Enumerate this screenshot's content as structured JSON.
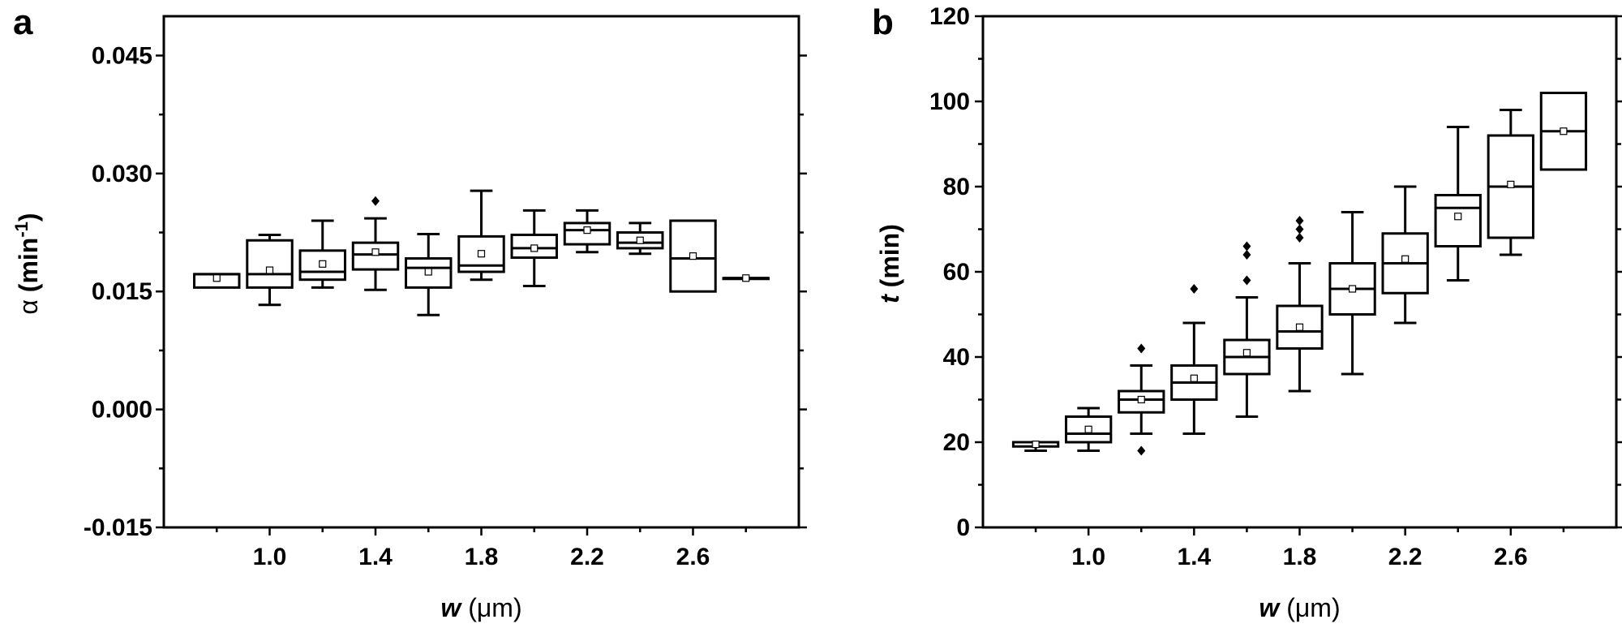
{
  "chart_data": [
    {
      "type": "box",
      "panel_label": "a",
      "xlabel": {
        "var": "w",
        "unit": " (μm)"
      },
      "ylabel": {
        "var": "α",
        "unit": " (min",
        "sup": "-1",
        "close": ")"
      },
      "xlim": [
        0.6,
        3.0
      ],
      "ylim": [
        -0.015,
        0.05
      ],
      "xticks": [
        1.0,
        1.4,
        1.8,
        2.2,
        2.6
      ],
      "xtick_labels": [
        "1.0",
        "1.4",
        "1.8",
        "2.2",
        "2.6"
      ],
      "yticks": [
        -0.015,
        0.0,
        0.015,
        0.03,
        0.045
      ],
      "ytick_labels": [
        "-0.015",
        "0.000",
        "0.015",
        "0.030",
        "0.045"
      ],
      "boxes": [
        {
          "x": 0.8,
          "q1": 0.0155,
          "median": 0.0172,
          "q3": 0.0172,
          "mean": 0.0167
        },
        {
          "x": 1.0,
          "whisker_low": 0.0133,
          "q1": 0.0155,
          "median": 0.0172,
          "q3": 0.0215,
          "whisker_high": 0.0222,
          "mean": 0.0177
        },
        {
          "x": 1.2,
          "whisker_low": 0.0155,
          "q1": 0.0165,
          "median": 0.0175,
          "q3": 0.0202,
          "whisker_high": 0.024,
          "mean": 0.0185
        },
        {
          "x": 1.4,
          "whisker_low": 0.0152,
          "q1": 0.0178,
          "median": 0.0197,
          "q3": 0.0212,
          "whisker_high": 0.0243,
          "mean": 0.02,
          "outliers": [
            0.0265
          ]
        },
        {
          "x": 1.6,
          "whisker_low": 0.012,
          "q1": 0.0155,
          "median": 0.018,
          "q3": 0.0192,
          "whisker_high": 0.0223,
          "mean": 0.0175
        },
        {
          "x": 1.8,
          "whisker_low": 0.0165,
          "q1": 0.0175,
          "median": 0.0183,
          "q3": 0.022,
          "whisker_high": 0.0278,
          "mean": 0.0198
        },
        {
          "x": 2.0,
          "whisker_low": 0.0157,
          "q1": 0.0193,
          "median": 0.0205,
          "q3": 0.0222,
          "whisker_high": 0.0253,
          "mean": 0.0205
        },
        {
          "x": 2.2,
          "whisker_low": 0.02,
          "q1": 0.021,
          "median": 0.0228,
          "q3": 0.0237,
          "whisker_high": 0.0253,
          "mean": 0.0228
        },
        {
          "x": 2.4,
          "whisker_low": 0.0198,
          "q1": 0.0205,
          "median": 0.0212,
          "q3": 0.0225,
          "whisker_high": 0.0237,
          "mean": 0.0215
        },
        {
          "x": 2.6,
          "q1": 0.015,
          "median": 0.0192,
          "q3": 0.024,
          "mean": 0.0195
        },
        {
          "x": 2.8,
          "q1": 0.0167,
          "median": 0.0167,
          "q3": 0.0167,
          "mean": 0.0167
        }
      ]
    },
    {
      "type": "box",
      "panel_label": "b",
      "xlabel": {
        "var": "w",
        "unit": " (μm)"
      },
      "ylabel": {
        "var": "t",
        "unit": " (min)"
      },
      "xlim": [
        0.6,
        3.0
      ],
      "ylim": [
        0,
        120
      ],
      "xticks": [
        1.0,
        1.4,
        1.8,
        2.2,
        2.6
      ],
      "xtick_labels": [
        "1.0",
        "1.4",
        "1.8",
        "2.2",
        "2.6"
      ],
      "yticks": [
        0,
        20,
        40,
        60,
        80,
        100,
        120
      ],
      "ytick_labels": [
        "0",
        "20",
        "40",
        "60",
        "80",
        "100",
        "120"
      ],
      "boxes": [
        {
          "x": 0.8,
          "whisker_low": 18,
          "q1": 19,
          "median": 20,
          "q3": 20,
          "whisker_high": 20,
          "mean": 19.5
        },
        {
          "x": 1.0,
          "whisker_low": 18,
          "q1": 20,
          "median": 22,
          "q3": 26,
          "whisker_high": 28,
          "mean": 23
        },
        {
          "x": 1.2,
          "whisker_low": 22,
          "q1": 27,
          "median": 30,
          "q3": 32,
          "whisker_high": 38,
          "mean": 30,
          "outliers": [
            18,
            42
          ]
        },
        {
          "x": 1.4,
          "whisker_low": 22,
          "q1": 30,
          "median": 34,
          "q3": 38,
          "whisker_high": 48,
          "mean": 35,
          "outliers": [
            56
          ]
        },
        {
          "x": 1.6,
          "whisker_low": 26,
          "q1": 36,
          "median": 40,
          "q3": 44,
          "whisker_high": 54,
          "mean": 41,
          "outliers": [
            58,
            64,
            66
          ]
        },
        {
          "x": 1.8,
          "whisker_low": 32,
          "q1": 42,
          "median": 46,
          "q3": 52,
          "whisker_high": 62,
          "mean": 47,
          "outliers": [
            68,
            70,
            72
          ]
        },
        {
          "x": 2.0,
          "whisker_low": 36,
          "q1": 50,
          "median": 56,
          "q3": 62,
          "whisker_high": 74,
          "mean": 56
        },
        {
          "x": 2.2,
          "whisker_low": 48,
          "q1": 55,
          "median": 62,
          "q3": 69,
          "whisker_high": 80,
          "mean": 63
        },
        {
          "x": 2.4,
          "whisker_low": 58,
          "q1": 66,
          "median": 75,
          "q3": 78,
          "whisker_high": 94,
          "mean": 73
        },
        {
          "x": 2.6,
          "whisker_low": 64,
          "q1": 68,
          "median": 80,
          "q3": 92,
          "whisker_high": 98,
          "mean": 80.5
        },
        {
          "x": 2.8,
          "q1": 84,
          "median": 93,
          "q3": 102,
          "mean": 93
        }
      ]
    }
  ]
}
